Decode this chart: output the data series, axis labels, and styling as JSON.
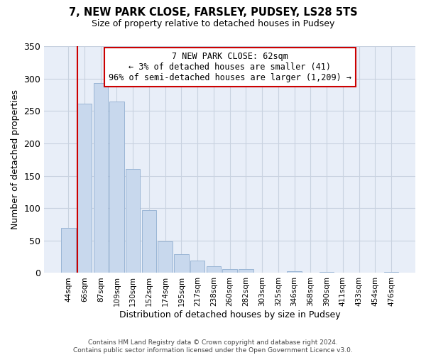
{
  "title": "7, NEW PARK CLOSE, FARSLEY, PUDSEY, LS28 5TS",
  "subtitle": "Size of property relative to detached houses in Pudsey",
  "xlabel": "Distribution of detached houses by size in Pudsey",
  "ylabel": "Number of detached properties",
  "bar_labels": [
    "44sqm",
    "66sqm",
    "87sqm",
    "109sqm",
    "130sqm",
    "152sqm",
    "174sqm",
    "195sqm",
    "217sqm",
    "238sqm",
    "260sqm",
    "282sqm",
    "303sqm",
    "325sqm",
    "346sqm",
    "368sqm",
    "390sqm",
    "411sqm",
    "433sqm",
    "454sqm",
    "476sqm"
  ],
  "bar_heights": [
    70,
    261,
    293,
    265,
    160,
    97,
    49,
    29,
    19,
    10,
    6,
    6,
    0,
    0,
    3,
    0,
    2,
    0,
    0,
    1,
    2
  ],
  "bar_color": "#c8d8ed",
  "bar_edge_color": "#9ab5d5",
  "highlight_line_color": "#cc0000",
  "ylim": [
    0,
    350
  ],
  "yticks": [
    0,
    50,
    100,
    150,
    200,
    250,
    300,
    350
  ],
  "annotation_line1": "7 NEW PARK CLOSE: 62sqm",
  "annotation_line2": "← 3% of detached houses are smaller (41)",
  "annotation_line3": "96% of semi-detached houses are larger (1,209) →",
  "annotation_box_color": "#ffffff",
  "annotation_box_edge": "#cc0000",
  "plot_bg_color": "#e8eef8",
  "footer_line1": "Contains HM Land Registry data © Crown copyright and database right 2024.",
  "footer_line2": "Contains public sector information licensed under the Open Government Licence v3.0.",
  "background_color": "#ffffff",
  "grid_color": "#c8d2e0"
}
